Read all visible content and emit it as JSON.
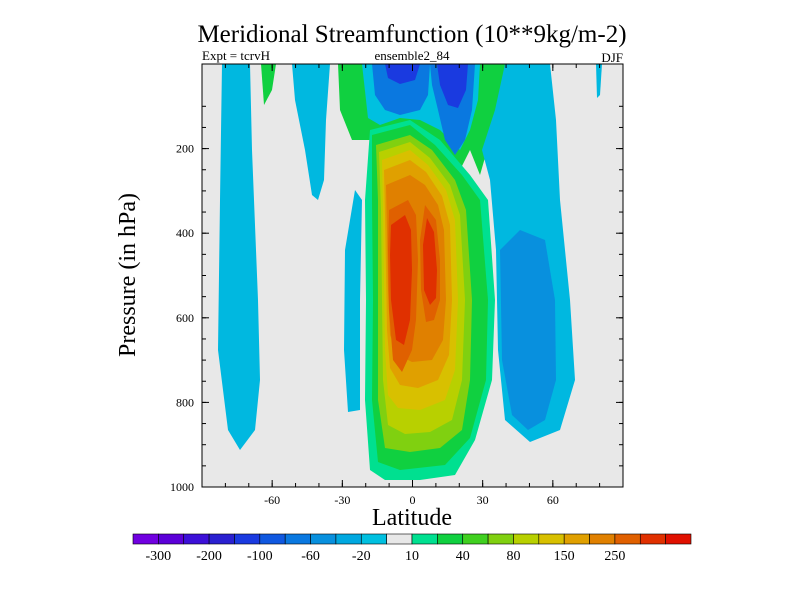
{
  "chart_data": {
    "type": "heatmap",
    "title": "Meridional Streamfunction (10**9kg/m-2)",
    "subtitle_left": "Expt = tcrvH",
    "subtitle_center": "ensemble2_84",
    "subtitle_right": "DJF",
    "xlabel": "Latitude",
    "ylabel": "Pressure (in hPa)",
    "xlim": [
      -90,
      90
    ],
    "ylim": [
      1000,
      0
    ],
    "xticks": [
      -60,
      -30,
      0,
      30,
      60
    ],
    "yticks": [
      200,
      400,
      600,
      800,
      1000
    ],
    "colorbar": {
      "labels": [
        "-300",
        "-200",
        "-100",
        "-60",
        "-20",
        "10",
        "40",
        "80",
        "150",
        "250"
      ],
      "colors": [
        "#7000e0",
        "#5b00d8",
        "#3c10d8",
        "#2a20d0",
        "#1a3ae0",
        "#1058e0",
        "#0a78e0",
        "#0890de",
        "#00a8e0",
        "#00c0e0",
        "#e8e8e8",
        "#00e090",
        "#10d040",
        "#40d020",
        "#80d010",
        "#b8d000",
        "#d8c000",
        "#e0a000",
        "#e08000",
        "#e06000",
        "#e03000",
        "#e01000"
      ]
    }
  }
}
